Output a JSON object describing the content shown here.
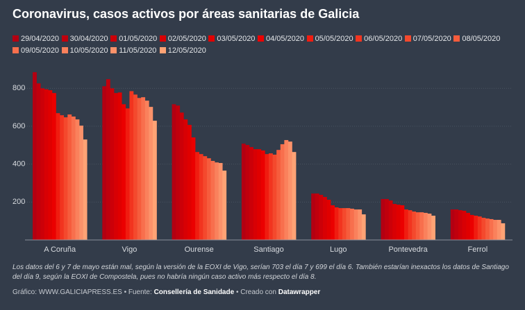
{
  "chart_data": {
    "type": "bar",
    "title": "Coronavirus, casos activos por áreas sanitarias de Galicia",
    "categories": [
      "A Coruña",
      "Vigo",
      "Ourense",
      "Santiago",
      "Lugo",
      "Pontevedra",
      "Ferrol"
    ],
    "series": [
      {
        "name": "29/04/2020",
        "color": "#b30012",
        "values": [
          885,
          811,
          716,
          508,
          245,
          216,
          161
        ]
      },
      {
        "name": "30/04/2020",
        "color": "#c0000d",
        "values": [
          826,
          848,
          709,
          501,
          245,
          216,
          161
        ]
      },
      {
        "name": "01/05/2020",
        "color": "#cc0008",
        "values": [
          800,
          800,
          672,
          490,
          238,
          208,
          157
        ]
      },
      {
        "name": "02/05/2020",
        "color": "#d80004",
        "values": [
          795,
          775,
          636,
          479,
          227,
          190,
          154
        ]
      },
      {
        "name": "03/05/2020",
        "color": "#e00000",
        "values": [
          790,
          778,
          607,
          479,
          212,
          186,
          143
        ]
      },
      {
        "name": "04/05/2020",
        "color": "#eb0000",
        "values": [
          775,
          716,
          541,
          472,
          183,
          183,
          132
        ]
      },
      {
        "name": "05/05/2020",
        "color": "#f01c10",
        "values": [
          669,
          694,
          464,
          453,
          172,
          161,
          128
        ]
      },
      {
        "name": "06/05/2020",
        "color": "#f2341f",
        "values": [
          658,
          785,
          453,
          457,
          168,
          157,
          124
        ]
      },
      {
        "name": "07/05/2020",
        "color": "#f4492d",
        "values": [
          647,
          767,
          442,
          450,
          168,
          150,
          117
        ]
      },
      {
        "name": "08/05/2020",
        "color": "#f65c3c",
        "values": [
          662,
          749,
          431,
          475,
          168,
          146,
          113
        ]
      },
      {
        "name": "09/05/2020",
        "color": "#f86f4d",
        "values": [
          651,
          753,
          417,
          505,
          165,
          146,
          110
        ]
      },
      {
        "name": "10/05/2020",
        "color": "#fa815c",
        "values": [
          636,
          735,
          409,
          527,
          161,
          143,
          106
        ]
      },
      {
        "name": "11/05/2020",
        "color": "#fc926a",
        "values": [
          603,
          702,
          406,
          519,
          161,
          139,
          106
        ]
      },
      {
        "name": "12/05/2020",
        "color": "#ffa375",
        "values": [
          530,
          629,
          366,
          464,
          135,
          128,
          88
        ]
      }
    ],
    "ylim": [
      0,
      900
    ],
    "yticks": [
      200,
      400,
      600,
      800
    ],
    "grid": true,
    "note": "Los datos del 6 y 7 de mayo están mal, según la versión de la EOXI de Vigo, serían 703 el día 7 y 699 el día 6. También estarían inexactos los datos de Santiago del día 9, según la EOXI de Compostela, pues no habría ningún caso activo más respecto el día 8.",
    "credits": {
      "text1": "Gráfico: WWW.GALICIAPRESS.ES • Fuente:",
      "source": "Consellería de Sanidade",
      "text2": "• Creado con",
      "tool": "Datawrapper"
    }
  }
}
